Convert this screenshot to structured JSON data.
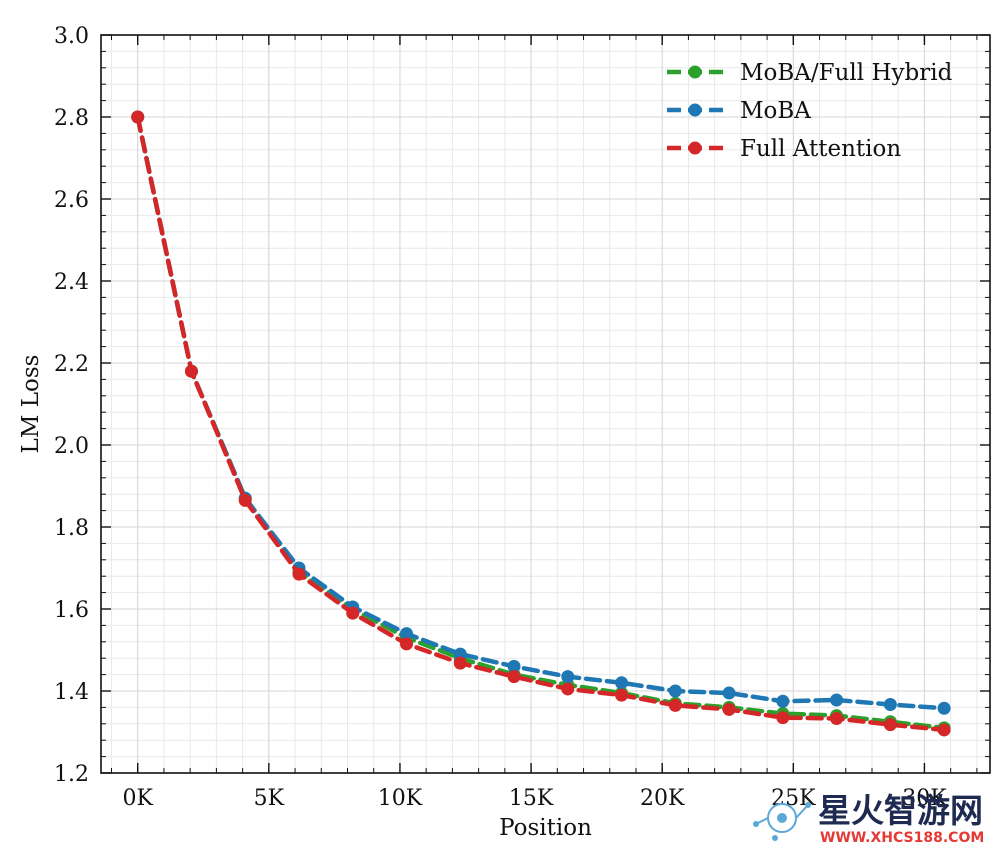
{
  "chart_data": {
    "type": "line",
    "title": "",
    "xlabel": "Position",
    "ylabel": "LM Loss",
    "xlim": [
      -1.4,
      32.5
    ],
    "ylim": [
      1.2,
      3.0
    ],
    "x_ticks": [
      0,
      5,
      10,
      15,
      20,
      25,
      30
    ],
    "x_tick_labels": [
      "0K",
      "5K",
      "10K",
      "15K",
      "20K",
      "25K",
      "30K"
    ],
    "y_ticks": [
      1.2,
      1.4,
      1.6,
      1.8,
      2.0,
      2.2,
      2.4,
      2.6,
      2.8,
      3.0
    ],
    "y_tick_labels": [
      "1.2",
      "1.4",
      "1.6",
      "1.8",
      "2.0",
      "2.2",
      "2.4",
      "2.6",
      "2.8",
      "3.0"
    ],
    "grid": true,
    "legend_position": "top-right",
    "line_style": "dashed",
    "x": [
      0,
      2.05,
      4.1,
      6.15,
      8.2,
      10.25,
      12.3,
      14.35,
      16.4,
      18.45,
      20.5,
      22.55,
      24.6,
      26.65,
      28.7,
      30.75
    ],
    "series": [
      {
        "name": "MoBA/Full Hybrid",
        "color": "#2ca02c",
        "values": [
          2.8,
          2.18,
          1.87,
          1.69,
          1.6,
          1.53,
          1.48,
          1.44,
          1.415,
          1.395,
          1.37,
          1.36,
          1.345,
          1.34,
          1.325,
          1.31
        ]
      },
      {
        "name": "MoBA",
        "color": "#1f77b4",
        "values": [
          2.8,
          2.18,
          1.87,
          1.7,
          1.605,
          1.54,
          1.49,
          1.46,
          1.435,
          1.42,
          1.4,
          1.395,
          1.375,
          1.378,
          1.367,
          1.358
        ]
      },
      {
        "name": "Full Attention",
        "color": "#d62728",
        "values": [
          2.8,
          2.18,
          1.865,
          1.685,
          1.59,
          1.515,
          1.468,
          1.435,
          1.405,
          1.39,
          1.365,
          1.355,
          1.335,
          1.333,
          1.318,
          1.305
        ]
      }
    ]
  },
  "watermark": {
    "text_main": "星火智游网",
    "text_sub": "WWW.XHCS188.COM"
  }
}
